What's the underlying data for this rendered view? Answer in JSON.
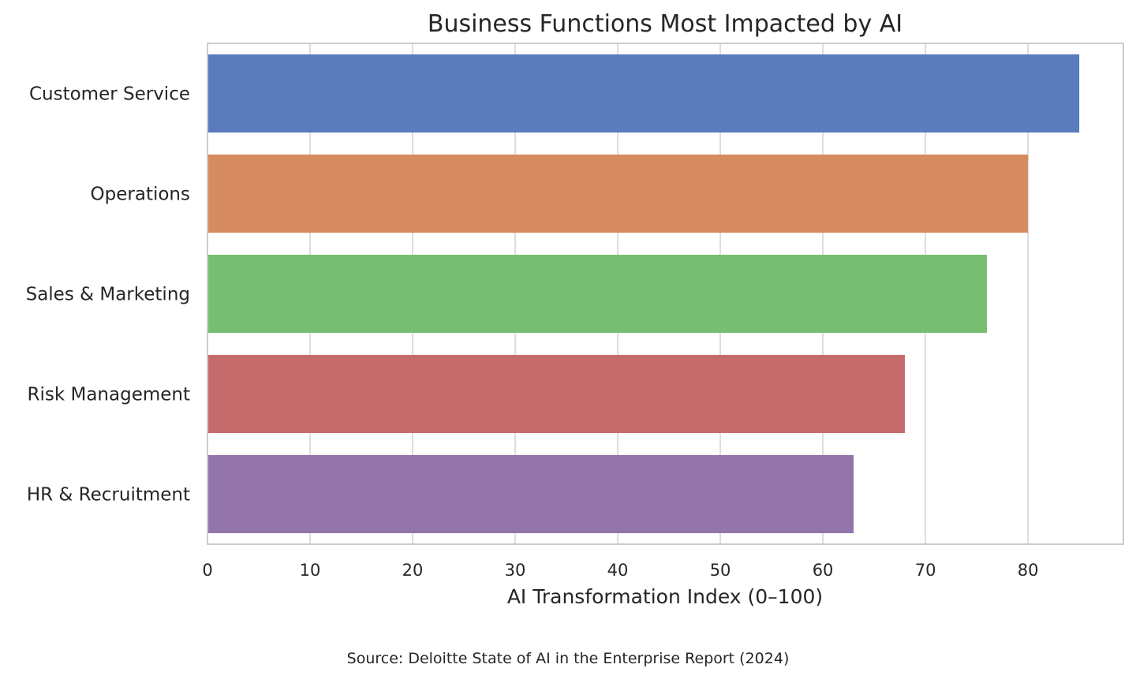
{
  "chart_data": {
    "type": "bar",
    "orientation": "horizontal",
    "title": "Business Functions Most Impacted by AI",
    "xlabel": "AI Transformation Index (0–100)",
    "ylabel": "",
    "categories": [
      "Customer Service",
      "Operations",
      "Sales & Marketing",
      "Risk Management",
      "HR & Recruitment"
    ],
    "values": [
      85,
      80,
      76,
      68,
      63
    ],
    "colors": [
      "#5a7cbd",
      "#d78b60",
      "#76bf72",
      "#c66b6b",
      "#9375ab"
    ],
    "xlim": [
      0,
      89.3
    ],
    "xticks": [
      0,
      10,
      20,
      30,
      40,
      50,
      60,
      70,
      80
    ],
    "grid": true,
    "source": "Source: Deloitte State of AI in the Enterprise Report (2024)"
  }
}
